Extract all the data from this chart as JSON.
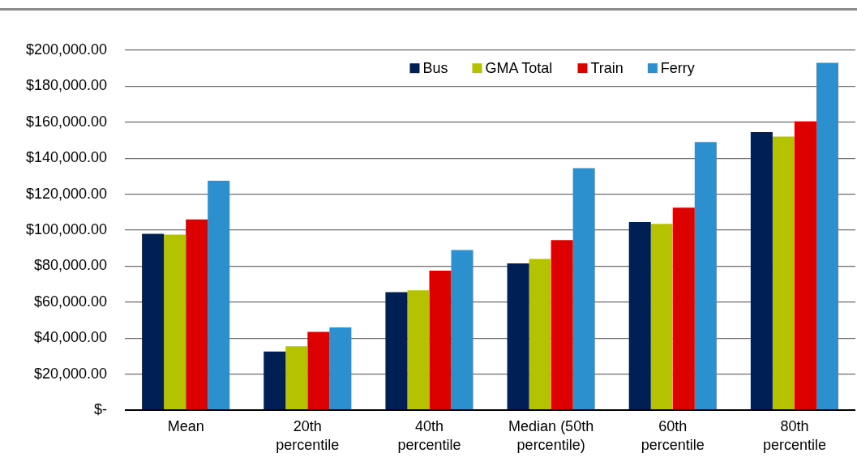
{
  "chart_data": {
    "type": "bar",
    "categories": [
      "Mean",
      "20th percentile",
      "40th percentile",
      "Median (50th percentile)",
      "60th percentile",
      "80th percentile"
    ],
    "series": [
      {
        "name": "Bus",
        "color": "#001f55",
        "values": [
          98000,
          32500,
          65500,
          81500,
          104500,
          154500
        ]
      },
      {
        "name": "GMA Total",
        "color": "#b5c200",
        "values": [
          97500,
          35500,
          66500,
          84000,
          103500,
          152000
        ]
      },
      {
        "name": "Train",
        "color": "#dd0000",
        "values": [
          106000,
          43500,
          77500,
          94500,
          112500,
          160500
        ]
      },
      {
        "name": "Ferry",
        "color": "#2c8fce",
        "values": [
          127500,
          46000,
          89000,
          134500,
          149000,
          193000
        ]
      }
    ],
    "ylim": [
      0,
      200000
    ],
    "yticks": [
      {
        "value": 0,
        "label": "$-"
      },
      {
        "value": 20000,
        "label": "$20,000.00"
      },
      {
        "value": 40000,
        "label": "$40,000.00"
      },
      {
        "value": 60000,
        "label": "$60,000.00"
      },
      {
        "value": 80000,
        "label": "$80,000.00"
      },
      {
        "value": 100000,
        "label": "$100,000.00"
      },
      {
        "value": 120000,
        "label": "$120,000.00"
      },
      {
        "value": 140000,
        "label": "$140,000.00"
      },
      {
        "value": 160000,
        "label": "$160,000.00"
      },
      {
        "value": 180000,
        "label": "$180,000.00"
      },
      {
        "value": 200000,
        "label": "$200,000.00"
      }
    ],
    "grid": "y",
    "legend": "top"
  }
}
